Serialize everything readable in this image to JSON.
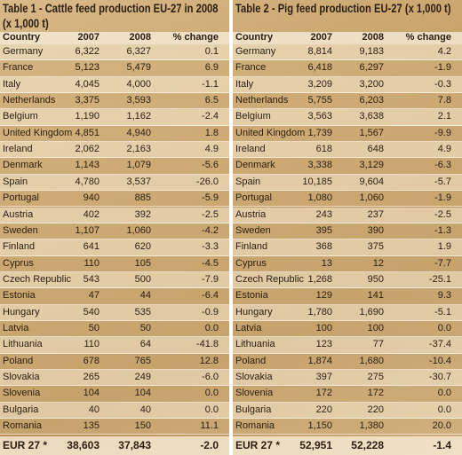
{
  "tables": [
    {
      "title": "Table 1 - Cattle feed production EU-27 in 2008 (x 1,000 t)",
      "columns": [
        "Country",
        "2007",
        "2008",
        "% change"
      ],
      "rows": [
        [
          "Germany",
          "6,322",
          "6,327",
          "0.1"
        ],
        [
          "France",
          "5,123",
          "5,479",
          "6.9"
        ],
        [
          "Italy",
          "4,045",
          "4,000",
          "-1.1"
        ],
        [
          "Netherlands",
          "3,375",
          "3,593",
          "6.5"
        ],
        [
          "Belgium",
          "1,190",
          "1,162",
          "-2.4"
        ],
        [
          "United Kingdom",
          "4,851",
          "4,940",
          "1.8"
        ],
        [
          "Ireland",
          "2,062",
          "2,163",
          "4.9"
        ],
        [
          "Denmark",
          "1,143",
          "1,079",
          "-5.6"
        ],
        [
          "Spain",
          "4,780",
          "3,537",
          "-26.0"
        ],
        [
          "Portugal",
          "940",
          "885",
          "-5.9"
        ],
        [
          "Austria",
          "402",
          "392",
          "-2.5"
        ],
        [
          "Sweden",
          "1,107",
          "1,060",
          "-4.2"
        ],
        [
          "Finland",
          "641",
          "620",
          "-3.3"
        ],
        [
          "Cyprus",
          "110",
          "105",
          "-4.5"
        ],
        [
          "Czech Republic",
          "543",
          "500",
          "-7.9"
        ],
        [
          "Estonia",
          "47",
          "44",
          "-6.4"
        ],
        [
          "Hungary",
          "540",
          "535",
          "-0.9"
        ],
        [
          "Latvia",
          "50",
          "50",
          "0.0"
        ],
        [
          "Lithuania",
          "110",
          "64",
          "-41.8"
        ],
        [
          "Poland",
          "678",
          "765",
          "12.8"
        ],
        [
          "Slovakia",
          "265",
          "249",
          "-6.0"
        ],
        [
          "Slovenia",
          "104",
          "104",
          "0.0"
        ],
        [
          "Bulgaria",
          "40",
          "40",
          "0.0"
        ],
        [
          "Romania",
          "135",
          "150",
          "11.1"
        ]
      ],
      "total": [
        "EUR 27 *",
        "38,603",
        "37,843",
        "-2.0"
      ]
    },
    {
      "title": "Table 2 - Pig feed production EU-27 (x 1,000 t)",
      "columns": [
        "Country",
        "2007",
        "2008",
        "% change"
      ],
      "rows": [
        [
          "Germany",
          "8,814",
          "9,183",
          "4.2"
        ],
        [
          "France",
          "6,418",
          "6,297",
          "-1.9"
        ],
        [
          "Italy",
          "3,209",
          "3,200",
          "-0.3"
        ],
        [
          "Netherlands",
          "5,755",
          "6,203",
          "7.8"
        ],
        [
          "Belgium",
          "3,563",
          "3,638",
          "2.1"
        ],
        [
          "United Kingdom",
          "1,739",
          "1,567",
          "-9.9"
        ],
        [
          "Ireland",
          "618",
          "648",
          "4.9"
        ],
        [
          "Denmark",
          "3,338",
          "3,129",
          "-6.3"
        ],
        [
          "Spain",
          "10,185",
          "9,604",
          "-5.7"
        ],
        [
          "Portugal",
          "1,080",
          "1,060",
          "-1.9"
        ],
        [
          "Austria",
          "243",
          "237",
          "-2.5"
        ],
        [
          "Sweden",
          "395",
          "390",
          "-1.3"
        ],
        [
          "Finland",
          "368",
          "375",
          "1.9"
        ],
        [
          "Cyprus",
          "13",
          "12",
          "-7.7"
        ],
        [
          "Czech Republic",
          "1,268",
          "950",
          "-25.1"
        ],
        [
          "Estonia",
          "129",
          "141",
          "9.3"
        ],
        [
          "Hungary",
          "1,780",
          "1,690",
          "-5.1"
        ],
        [
          "Latvia",
          "100",
          "100",
          "0.0"
        ],
        [
          "Lithuania",
          "123",
          "77",
          "-37.4"
        ],
        [
          "Poland",
          "1,874",
          "1,680",
          "-10.4"
        ],
        [
          "Slovakia",
          "397",
          "275",
          "-30.7"
        ],
        [
          "Slovenia",
          "172",
          "172",
          "0.0"
        ],
        [
          "Bulgaria",
          "220",
          "220",
          "0.0"
        ],
        [
          "Romania",
          "1,150",
          "1,380",
          "20.0"
        ]
      ],
      "total": [
        "EUR 27 *",
        "52,951",
        "52,228",
        "-1.4"
      ]
    }
  ]
}
